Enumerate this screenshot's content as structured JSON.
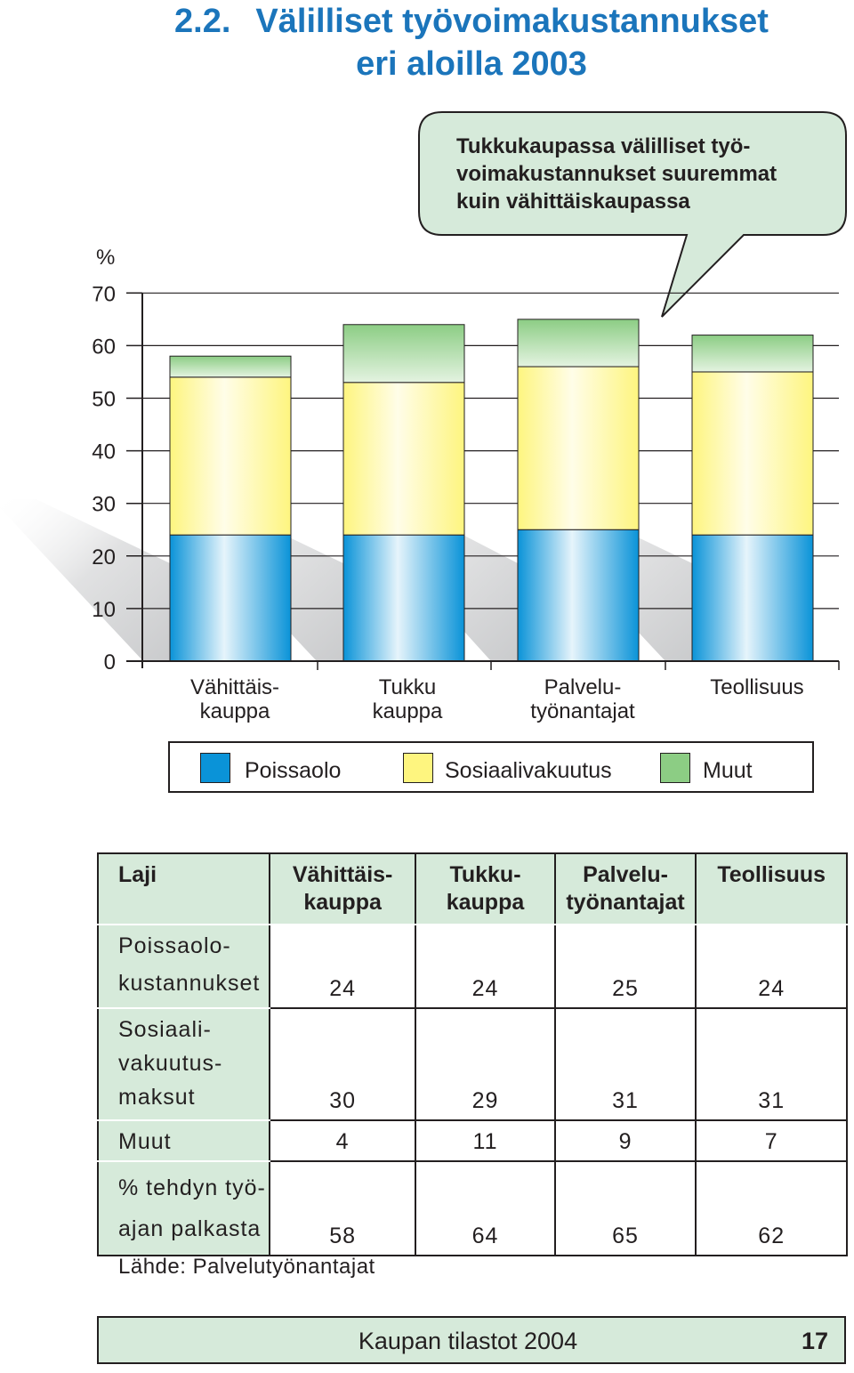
{
  "header": {
    "number": "2.2.",
    "title_line1": "Välilliset työvoimakustannukset",
    "title_line2": "eri aloilla 2003"
  },
  "callout": {
    "lines": [
      "Tukkukaupassa välilliset työ-",
      "voimakustannukset suuremmat",
      "kuin vähittäiskaupassa"
    ]
  },
  "colors": {
    "poissaolo": "#0a93d8",
    "sosiaalivakuutus": "#fef57f",
    "muut": "#8ccd84",
    "panel": "#d6eada",
    "title": "#1b75bb"
  },
  "chart_data": {
    "type": "bar",
    "stacked": true,
    "unit": "%",
    "ylim": [
      0,
      70
    ],
    "yticks": [
      "0",
      "10",
      "20",
      "30",
      "40",
      "50",
      "60",
      "70"
    ],
    "categories": [
      [
        "Vähittäis-",
        "kauppa"
      ],
      [
        "Tukku",
        "kauppa"
      ],
      [
        "Palvelu-",
        "työnantajat"
      ],
      [
        "Teollisuus"
      ]
    ],
    "series": [
      {
        "name": "Poissaolo",
        "values": [
          24,
          24,
          25,
          24
        ]
      },
      {
        "name": "Sosiaalivakuutus",
        "values": [
          30,
          29,
          31,
          31
        ]
      },
      {
        "name": "Muut",
        "values": [
          4,
          11,
          9,
          7
        ]
      }
    ],
    "legend": "bottom"
  },
  "legend": {
    "poissaolo": "Poissaolo",
    "sosiaalivakuutus": "Sosiaalivakuutus",
    "muut": "Muut"
  },
  "table": {
    "headers": [
      "Laji",
      "Vähittäis-\nkauppa",
      "Tukku-\nkauppa",
      "Palvelu-\ntyönantajat",
      "Teollisuus"
    ],
    "rows": [
      {
        "label": "Poissaolo-\nkustannukset",
        "values": [
          "24",
          "24",
          "25",
          "24"
        ]
      },
      {
        "label": "Sosiaali-\nvakuutus-\nmaksut",
        "values": [
          "30",
          "29",
          "31",
          "31"
        ]
      },
      {
        "label": "Muut",
        "values": [
          "4",
          "11",
          "9",
          "7"
        ]
      },
      {
        "label": "% tehdyn työ-\najan  palkasta",
        "values": [
          "58",
          "64",
          "65",
          "62"
        ]
      }
    ]
  },
  "source": "Lähde:  Palvelutyönantajat",
  "footer": {
    "publication": "Kaupan tilastot 2004",
    "page": "17"
  }
}
